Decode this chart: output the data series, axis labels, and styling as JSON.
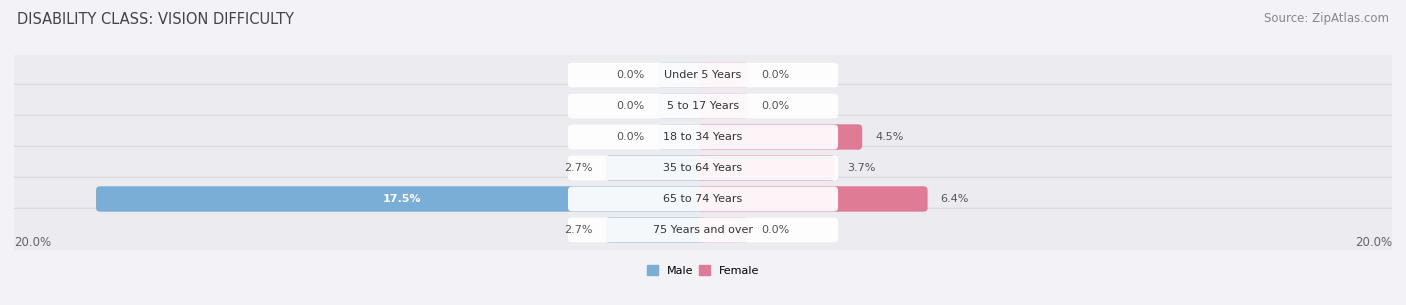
{
  "title": "DISABILITY CLASS: VISION DIFFICULTY",
  "source": "Source: ZipAtlas.com",
  "categories": [
    "Under 5 Years",
    "5 to 17 Years",
    "18 to 34 Years",
    "35 to 64 Years",
    "65 to 74 Years",
    "75 Years and over"
  ],
  "male_values": [
    0.0,
    0.0,
    0.0,
    2.7,
    17.5,
    2.7
  ],
  "female_values": [
    0.0,
    0.0,
    4.5,
    3.7,
    6.4,
    0.0
  ],
  "male_color": "#7aaed6",
  "female_color": "#e07b96",
  "male_stub_color": "#b8cfe8",
  "female_stub_color": "#f0b8c8",
  "bar_bg_color": "#ebebf0",
  "bar_bg_edge_color": "#d8d8e0",
  "max_val": 20.0,
  "title_fontsize": 10.5,
  "source_fontsize": 8.5,
  "label_fontsize": 8.0,
  "value_fontsize": 8.0,
  "tick_fontsize": 8.5,
  "background_color": "#f2f2f7",
  "legend_male": "Male",
  "legend_female": "Female"
}
